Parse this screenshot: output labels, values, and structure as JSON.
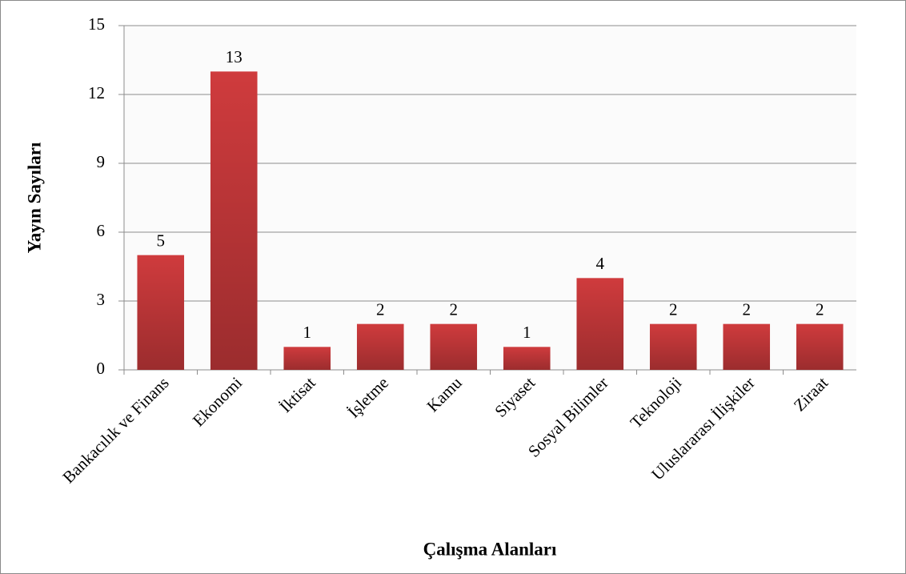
{
  "chart_data": {
    "type": "bar",
    "xlabel": "Çalışma Alanları",
    "ylabel": "Yayın Sayıları",
    "categories": [
      "Bankacılık ve Finans",
      "Ekonomi",
      "İktisat",
      "İşletme",
      "Kamu",
      "Siyaset",
      "Sosyal Bilimler",
      "Teknoloji",
      "Uluslararası İlişkiler",
      "Ziraat"
    ],
    "values": [
      5,
      13,
      1,
      2,
      2,
      1,
      4,
      2,
      2,
      2
    ],
    "color": "#cf3b3d",
    "ylim": [
      0,
      15
    ],
    "yticks": [
      0,
      3,
      6,
      9,
      12,
      15
    ],
    "grid": true
  }
}
